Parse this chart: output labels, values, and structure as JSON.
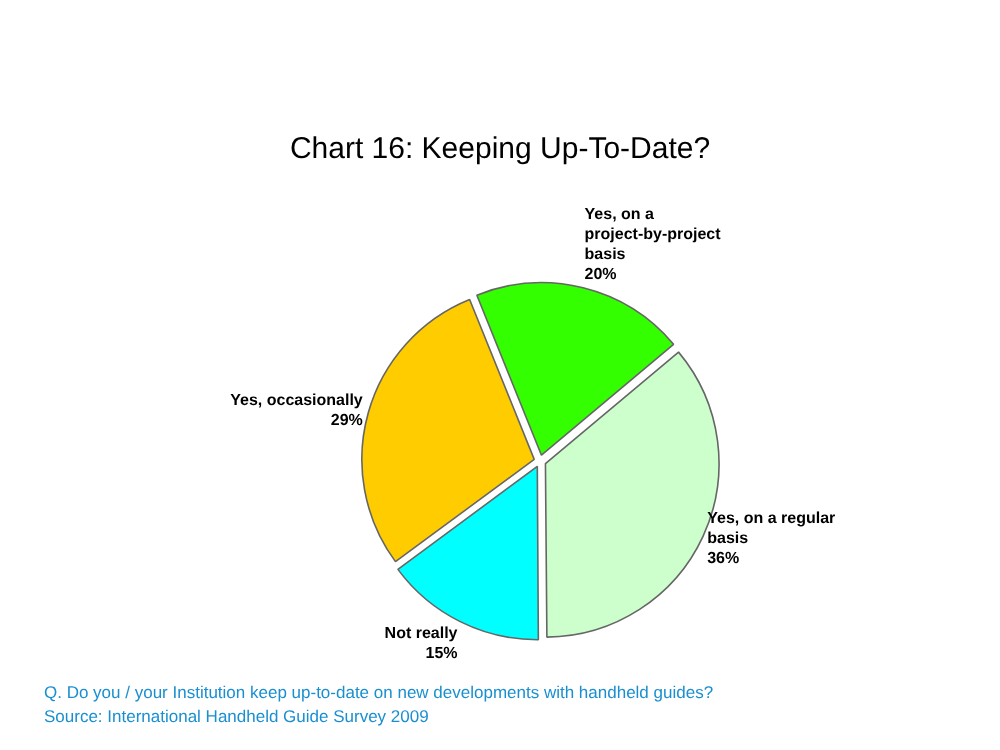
{
  "chart_data": {
    "type": "pie",
    "title": "Chart 16: Keeping Up-To-Date?",
    "categories": [
      "Yes, on a project-by-project basis",
      "Yes, on a regular basis",
      "Not really",
      "Yes, occasionally"
    ],
    "values": [
      20,
      36,
      15,
      29
    ],
    "value_labels": [
      "20%",
      "36%",
      "15%",
      "29%"
    ],
    "colors": [
      "#33ff00",
      "#ccffcc",
      "#00ffff",
      "#ffcc00"
    ],
    "legend": false,
    "annotations": [
      "Q. Do you / your Institution keep up-to-date on new developments with handheld guides?",
      "Source: International Handheld Guide Survey 2009"
    ]
  }
}
